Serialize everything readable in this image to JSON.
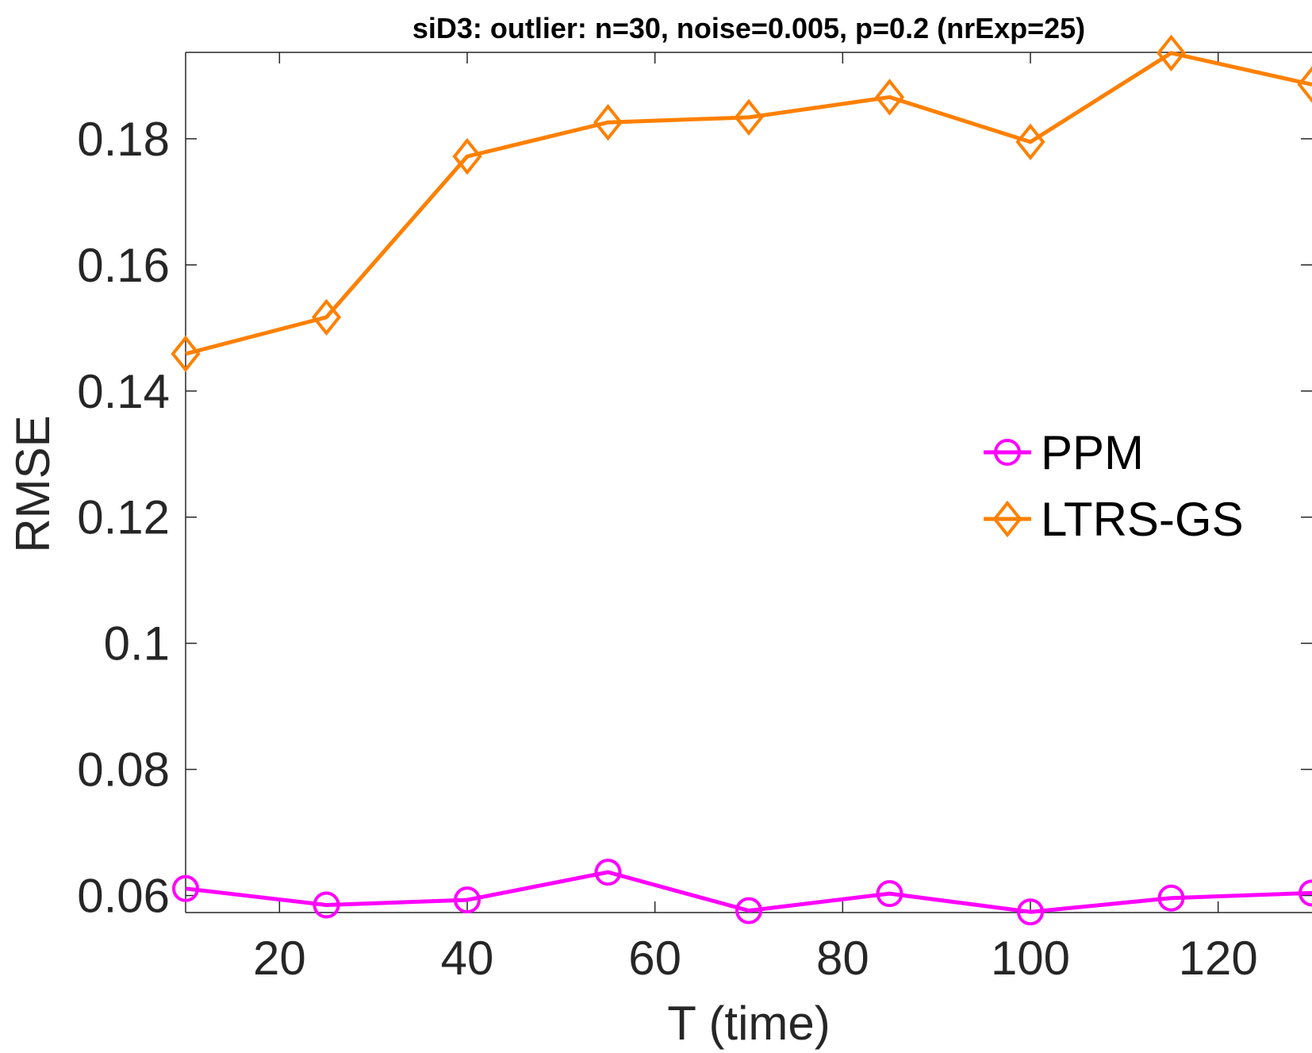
{
  "chart_data": {
    "type": "line",
    "title": "siD3: outlier: n=30, noise=0.005, p=0.2 (nrExp=25)",
    "xlabel": "T (time)",
    "ylabel": "RMSE",
    "x": [
      10,
      25,
      40,
      55,
      70,
      85,
      100,
      115,
      130
    ],
    "xlim": [
      10,
      130
    ],
    "ylim": [
      0.0573,
      0.1937
    ],
    "xticks": [
      "20",
      "40",
      "60",
      "80",
      "100",
      "120"
    ],
    "yticks": [
      "0.06",
      "0.08",
      "0.1",
      "0.12",
      "0.14",
      "0.16",
      "0.18"
    ],
    "grid": false,
    "legend_position": "right",
    "series": [
      {
        "name": "PPM",
        "color": "#ff00ff",
        "marker": "circle",
        "values": [
          0.0611,
          0.0585,
          0.0593,
          0.0637,
          0.0576,
          0.0603,
          0.0574,
          0.0596,
          0.0604
        ]
      },
      {
        "name": "LTRS-GS",
        "color": "#ff8000",
        "marker": "diamond",
        "values": [
          0.1459,
          0.1517,
          0.1772,
          0.1826,
          0.1834,
          0.1866,
          0.1795,
          0.1936,
          0.1886
        ]
      }
    ]
  }
}
